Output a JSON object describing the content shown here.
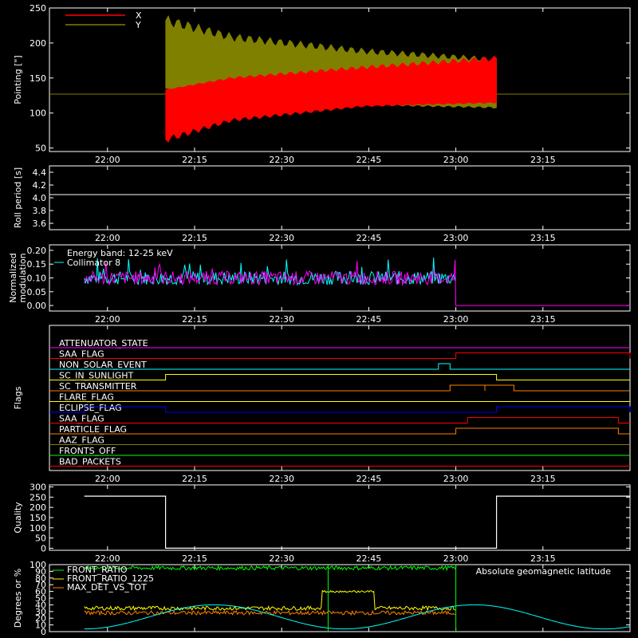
{
  "x_ticks": [
    "22:00",
    "22:15",
    "22:30",
    "22:45",
    "23:00",
    "23:15"
  ],
  "chart_data": [
    {
      "type": "line",
      "ylabel": "Pointing [\"]",
      "ylim": [
        45,
        250
      ],
      "yticks": [
        "50",
        "100",
        "150",
        "200",
        "250"
      ],
      "baseline": 127,
      "legend": [
        {
          "name": "X",
          "color": "#ff0000"
        },
        {
          "name": "Y",
          "color": "#808000"
        }
      ],
      "series": [
        {
          "name": "X",
          "color": "#ff0000",
          "x_range": [
            "22:10",
            "23:07"
          ],
          "upper": [
            [
              0,
              133
            ],
            [
              0.2,
              150
            ],
            [
              0.6,
              165
            ],
            [
              1,
              178
            ]
          ],
          "lower": [
            [
              0,
              62
            ],
            [
              0.2,
              90
            ],
            [
              0.6,
              110
            ],
            [
              1,
              115
            ]
          ]
        },
        {
          "name": "Y",
          "color": "#808000",
          "x_range": [
            "22:10",
            "23:07"
          ],
          "upper": [
            [
              0,
              232
            ],
            [
              0.2,
              208
            ],
            [
              0.6,
              188
            ],
            [
              1,
              176
            ]
          ],
          "lower": [
            [
              0,
              135
            ],
            [
              0.2,
              120
            ],
            [
              0.6,
              112
            ],
            [
              1,
              108
            ]
          ]
        }
      ]
    },
    {
      "type": "line",
      "ylabel": "Roll period [s]",
      "ylim": [
        3.5,
        4.5
      ],
      "yticks": [
        "3.6",
        "3.8",
        "4.0",
        "4.2",
        "4.4"
      ],
      "series": [
        {
          "color": "#ffffff",
          "constant": 4.05
        }
      ]
    },
    {
      "type": "line",
      "ylabel": "Normalized modulation",
      "ylim": [
        -0.02,
        0.22
      ],
      "yticks": [
        "0.00",
        "0.05",
        "0.10",
        "0.15",
        "0.20"
      ],
      "annotations": [
        "Energy band: 12-25 keV",
        "Collimator 8"
      ],
      "series": [
        {
          "name": "Collimator 8",
          "color": "#00ffff",
          "x_range": [
            "21:56",
            "23:00"
          ],
          "level": 0.1
        },
        {
          "color": "#ff00ff",
          "x_range": [
            "21:56",
            "23:00"
          ],
          "level": 0.1,
          "after": 0.0
        }
      ]
    },
    {
      "type": "line",
      "ylabel": "Flags",
      "flags": [
        {
          "name": "ATTENUATOR_STATE",
          "color": "#ff00ff",
          "on": []
        },
        {
          "name": "SAA_FLAG",
          "color": "#ff0000",
          "on": [
            [
              "23:00",
              "23:30"
            ]
          ]
        },
        {
          "name": "NON_SOLAR_EVENT",
          "color": "#00ffff",
          "on": [
            [
              "22:57",
              "22:59"
            ]
          ]
        },
        {
          "name": "SC_IN_SUNLIGHT",
          "color": "#ffff00",
          "on": [
            [
              "22:10",
              "23:07"
            ]
          ]
        },
        {
          "name": "SC_TRANSMITTER",
          "color": "#ff8000",
          "on": [
            [
              "22:59",
              "23:05"
            ],
            [
              "23:05",
              "23:10"
            ]
          ]
        },
        {
          "name": "FLARE_FLAG",
          "color": "#ffff00",
          "on": []
        },
        {
          "name": "ECLIPSE_FLAG",
          "color": "#0000ff",
          "on": [
            [
              "21:56",
              "22:10"
            ],
            [
              "23:07",
              "23:30"
            ]
          ]
        },
        {
          "name": "SAA_FLAG",
          "color": "#ff0000",
          "on": [
            [
              "23:02",
              "23:28"
            ]
          ]
        },
        {
          "name": "PARTICLE_FLAG",
          "color": "#ff8000",
          "on": [
            [
              "23:00",
              "23:28"
            ]
          ]
        },
        {
          "name": "AAZ_FLAG",
          "color": "#808000",
          "on": []
        },
        {
          "name": "FRONTS_OFF",
          "color": "#00ff00",
          "on": []
        },
        {
          "name": "BAD_PACKETS",
          "color": "#ff0000",
          "on": []
        }
      ]
    },
    {
      "type": "line",
      "ylabel": "Quality",
      "ylim": [
        -10,
        310
      ],
      "yticks": [
        "0",
        "50",
        "100",
        "150",
        "200",
        "250",
        "300"
      ],
      "series": [
        {
          "color": "#ffffff",
          "segments": [
            [
              [
                "21:56",
                255
              ],
              [
                "22:10",
                255
              ],
              [
                "22:10",
                0
              ],
              [
                "23:07",
                0
              ],
              [
                "23:07",
                255
              ],
              [
                "23:30",
                255
              ]
            ]
          ]
        }
      ]
    },
    {
      "type": "line",
      "ylabel": "Degrees or %",
      "ylim": [
        0,
        100
      ],
      "yticks": [
        "0",
        "10",
        "20",
        "30",
        "40",
        "50",
        "60",
        "70",
        "80",
        "90",
        "100"
      ],
      "legend": [
        {
          "name": "FRONT_RATIO",
          "color": "#00ff00"
        },
        {
          "name": "FRONT_RATIO_1225",
          "color": "#ffff00"
        },
        {
          "name": "MAX_DET_VS_TOT",
          "color": "#ff8000"
        }
      ],
      "annotation": "Absolute geomagnetic latitude",
      "annotation_color": "#00ffff",
      "series": [
        {
          "name": "FRONT_RATIO",
          "color": "#00ff00",
          "x_range": [
            "21:56",
            "23:00"
          ],
          "level": 95
        },
        {
          "name": "FRONT_RATIO_1225",
          "color": "#ffff00",
          "x_range": [
            "21:56",
            "23:00"
          ],
          "level": 35,
          "bump": [
            [
              "22:37",
              "22:46"
            ],
            60
          ]
        },
        {
          "name": "MAX_DET_VS_TOT",
          "color": "#ff8000",
          "x_range": [
            "21:56",
            "23:00"
          ],
          "level": 28
        },
        {
          "name": "Absolute geomagnetic latitude",
          "color": "#00ffff",
          "x_range": [
            "21:56",
            "23:30"
          ],
          "wave": true
        }
      ]
    }
  ]
}
